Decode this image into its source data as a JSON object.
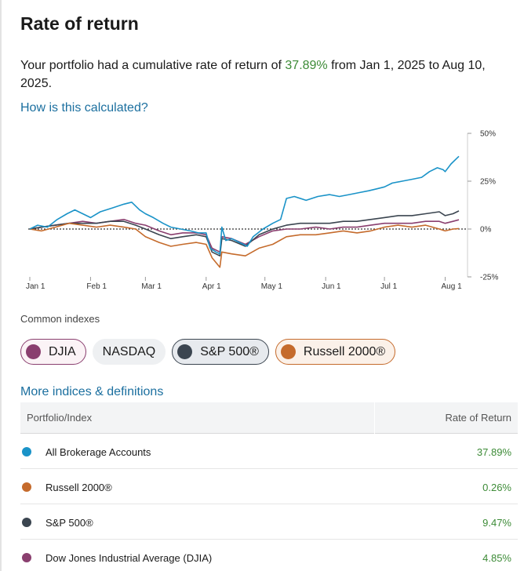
{
  "header": {
    "title": "Rate of return"
  },
  "summary": {
    "prefix": "Your portfolio had a cumulative rate of return of ",
    "return_pct": "37.89%",
    "suffix": " from Jan 1, 2025 to Aug 10, 2025."
  },
  "links": {
    "how_calculated": "How is this calculated?",
    "more_indices": "More indices & definitions"
  },
  "chart_data": {
    "type": "line",
    "x_start": "2025-01-01",
    "x_end": "2025-08-10",
    "x_ticks": [
      {
        "date": "2025-01-01",
        "label": "Jan 1"
      },
      {
        "date": "2025-02-01",
        "label": "Feb 1"
      },
      {
        "date": "2025-03-01",
        "label": "Mar 1"
      },
      {
        "date": "2025-04-01",
        "label": "Apr 1"
      },
      {
        "date": "2025-05-01",
        "label": "May 1"
      },
      {
        "date": "2025-06-01",
        "label": "Jun 1"
      },
      {
        "date": "2025-07-01",
        "label": "Jul 1"
      },
      {
        "date": "2025-08-01",
        "label": "Aug 1"
      }
    ],
    "y_ticks": [
      {
        "value": 50,
        "label": "50%"
      },
      {
        "value": 25,
        "label": "25%"
      },
      {
        "value": 0,
        "label": "0%"
      },
      {
        "value": -25,
        "label": "-25%"
      }
    ],
    "ylim": [
      -25,
      50
    ],
    "y_axis_position": "right",
    "zero_line": "dotted",
    "series": [
      {
        "name": "All Brokerage Accounts",
        "color": "#1a93c8",
        "points": [
          [
            "2025-01-01",
            0
          ],
          [
            "2025-01-05",
            2
          ],
          [
            "2025-01-10",
            1
          ],
          [
            "2025-01-15",
            5
          ],
          [
            "2025-01-20",
            8
          ],
          [
            "2025-01-24",
            10
          ],
          [
            "2025-01-28",
            8
          ],
          [
            "2025-02-01",
            6
          ],
          [
            "2025-02-06",
            9
          ],
          [
            "2025-02-12",
            11
          ],
          [
            "2025-02-18",
            13
          ],
          [
            "2025-02-22",
            14
          ],
          [
            "2025-02-26",
            10
          ],
          [
            "2025-03-01",
            8
          ],
          [
            "2025-03-05",
            6
          ],
          [
            "2025-03-10",
            3
          ],
          [
            "2025-03-14",
            1
          ],
          [
            "2025-03-19",
            0
          ],
          [
            "2025-03-24",
            -1
          ],
          [
            "2025-03-28",
            -2
          ],
          [
            "2025-04-01",
            -2
          ],
          [
            "2025-04-03",
            -10
          ],
          [
            "2025-04-06",
            -12
          ],
          [
            "2025-04-08",
            -13
          ],
          [
            "2025-04-09",
            1
          ],
          [
            "2025-04-11",
            -6
          ],
          [
            "2025-04-14",
            -5
          ],
          [
            "2025-04-18",
            -7
          ],
          [
            "2025-04-22",
            -9
          ],
          [
            "2025-04-25",
            -4
          ],
          [
            "2025-04-30",
            0
          ],
          [
            "2025-05-05",
            3
          ],
          [
            "2025-05-09",
            5
          ],
          [
            "2025-05-12",
            16
          ],
          [
            "2025-05-16",
            17
          ],
          [
            "2025-05-22",
            15
          ],
          [
            "2025-05-28",
            17
          ],
          [
            "2025-06-03",
            18
          ],
          [
            "2025-06-08",
            17
          ],
          [
            "2025-06-13",
            18
          ],
          [
            "2025-06-18",
            19
          ],
          [
            "2025-06-23",
            20
          ],
          [
            "2025-06-27",
            21
          ],
          [
            "2025-07-01",
            22
          ],
          [
            "2025-07-05",
            24
          ],
          [
            "2025-07-10",
            25
          ],
          [
            "2025-07-15",
            26
          ],
          [
            "2025-07-20",
            27
          ],
          [
            "2025-07-24",
            30
          ],
          [
            "2025-07-28",
            32
          ],
          [
            "2025-07-31",
            31
          ],
          [
            "2025-08-01",
            30
          ],
          [
            "2025-08-04",
            34
          ],
          [
            "2025-08-07",
            37
          ],
          [
            "2025-08-08",
            38
          ]
        ]
      },
      {
        "name": "Russell 2000®",
        "color": "#c56b2c",
        "points": [
          [
            "2025-01-01",
            0
          ],
          [
            "2025-01-07",
            -1
          ],
          [
            "2025-01-14",
            1
          ],
          [
            "2025-01-21",
            3
          ],
          [
            "2025-01-28",
            2
          ],
          [
            "2025-02-04",
            1
          ],
          [
            "2025-02-11",
            2
          ],
          [
            "2025-02-18",
            1
          ],
          [
            "2025-02-24",
            0
          ],
          [
            "2025-03-01",
            -4
          ],
          [
            "2025-03-08",
            -7
          ],
          [
            "2025-03-14",
            -9
          ],
          [
            "2025-03-20",
            -8
          ],
          [
            "2025-03-27",
            -7
          ],
          [
            "2025-04-01",
            -8
          ],
          [
            "2025-04-04",
            -15
          ],
          [
            "2025-04-08",
            -20
          ],
          [
            "2025-04-09",
            -12
          ],
          [
            "2025-04-14",
            -13
          ],
          [
            "2025-04-21",
            -14
          ],
          [
            "2025-04-28",
            -10
          ],
          [
            "2025-05-05",
            -8
          ],
          [
            "2025-05-12",
            -4
          ],
          [
            "2025-05-19",
            -3
          ],
          [
            "2025-05-27",
            -3
          ],
          [
            "2025-06-03",
            -2
          ],
          [
            "2025-06-10",
            -1
          ],
          [
            "2025-06-17",
            -2
          ],
          [
            "2025-06-24",
            -1
          ],
          [
            "2025-07-01",
            1
          ],
          [
            "2025-07-08",
            2
          ],
          [
            "2025-07-15",
            1
          ],
          [
            "2025-07-22",
            2
          ],
          [
            "2025-07-29",
            0
          ],
          [
            "2025-08-01",
            -1
          ],
          [
            "2025-08-05",
            0
          ],
          [
            "2025-08-08",
            0.26
          ]
        ]
      },
      {
        "name": "S&P 500®",
        "color": "#3b4550",
        "points": [
          [
            "2025-01-01",
            0
          ],
          [
            "2025-01-07",
            1
          ],
          [
            "2025-01-14",
            2
          ],
          [
            "2025-01-21",
            3
          ],
          [
            "2025-01-28",
            3
          ],
          [
            "2025-02-04",
            3
          ],
          [
            "2025-02-11",
            4
          ],
          [
            "2025-02-18",
            4
          ],
          [
            "2025-02-24",
            2
          ],
          [
            "2025-03-01",
            0
          ],
          [
            "2025-03-08",
            -3
          ],
          [
            "2025-03-14",
            -5
          ],
          [
            "2025-03-20",
            -4
          ],
          [
            "2025-03-27",
            -3
          ],
          [
            "2025-04-01",
            -4
          ],
          [
            "2025-04-04",
            -12
          ],
          [
            "2025-04-08",
            -14
          ],
          [
            "2025-04-09",
            -5
          ],
          [
            "2025-04-14",
            -6
          ],
          [
            "2025-04-21",
            -9
          ],
          [
            "2025-04-28",
            -3
          ],
          [
            "2025-05-05",
            0
          ],
          [
            "2025-05-12",
            2
          ],
          [
            "2025-05-19",
            3
          ],
          [
            "2025-05-27",
            3
          ],
          [
            "2025-06-03",
            3
          ],
          [
            "2025-06-10",
            4
          ],
          [
            "2025-06-17",
            4
          ],
          [
            "2025-06-24",
            5
          ],
          [
            "2025-07-01",
            6
          ],
          [
            "2025-07-08",
            7
          ],
          [
            "2025-07-15",
            7
          ],
          [
            "2025-07-22",
            8
          ],
          [
            "2025-07-29",
            9
          ],
          [
            "2025-08-01",
            7
          ],
          [
            "2025-08-05",
            8
          ],
          [
            "2025-08-08",
            9.47
          ]
        ]
      },
      {
        "name": "Dow Jones Industrial Average (DJIA)",
        "color": "#8a3f6f",
        "points": [
          [
            "2025-01-01",
            0
          ],
          [
            "2025-01-07",
            1
          ],
          [
            "2025-01-14",
            2
          ],
          [
            "2025-01-21",
            3
          ],
          [
            "2025-01-28",
            4
          ],
          [
            "2025-02-04",
            3
          ],
          [
            "2025-02-11",
            4
          ],
          [
            "2025-02-18",
            5
          ],
          [
            "2025-02-24",
            3
          ],
          [
            "2025-03-01",
            2
          ],
          [
            "2025-03-08",
            -1
          ],
          [
            "2025-03-14",
            -3
          ],
          [
            "2025-03-20",
            -2
          ],
          [
            "2025-03-27",
            -2
          ],
          [
            "2025-04-01",
            -3
          ],
          [
            "2025-04-04",
            -10
          ],
          [
            "2025-04-08",
            -12
          ],
          [
            "2025-04-09",
            -4
          ],
          [
            "2025-04-14",
            -5
          ],
          [
            "2025-04-21",
            -8
          ],
          [
            "2025-04-28",
            -4
          ],
          [
            "2025-05-05",
            -1
          ],
          [
            "2025-05-12",
            0
          ],
          [
            "2025-05-19",
            0
          ],
          [
            "2025-05-27",
            1
          ],
          [
            "2025-06-03",
            0
          ],
          [
            "2025-06-10",
            1
          ],
          [
            "2025-06-17",
            1
          ],
          [
            "2025-06-24",
            2
          ],
          [
            "2025-07-01",
            3
          ],
          [
            "2025-07-08",
            3
          ],
          [
            "2025-07-15",
            3
          ],
          [
            "2025-07-22",
            4
          ],
          [
            "2025-07-29",
            4
          ],
          [
            "2025-08-01",
            3
          ],
          [
            "2025-08-05",
            4
          ],
          [
            "2025-08-08",
            4.85
          ]
        ]
      }
    ]
  },
  "indexes": {
    "label": "Common indexes",
    "chips": [
      {
        "label": "DJIA",
        "color": "#8a3f6f",
        "selected": true
      },
      {
        "label": "NASDAQ",
        "selected": false
      },
      {
        "label": "S&P 500®",
        "color": "#3b4550",
        "selected": true
      },
      {
        "label": "Russell 2000®",
        "color": "#c56b2c",
        "selected": true
      }
    ]
  },
  "table": {
    "col_name": "Portfolio/Index",
    "col_return": "Rate of Return",
    "rows": [
      {
        "name": "All Brokerage Accounts",
        "value": "37.89%",
        "color": "#1a93c8"
      },
      {
        "name": "Russell 2000®",
        "value": "0.26%",
        "color": "#c56b2c"
      },
      {
        "name": "S&P 500®",
        "value": "9.47%",
        "color": "#3b4550"
      },
      {
        "name": "Dow Jones Industrial Average (DJIA)",
        "value": "4.85%",
        "color": "#8a3f6f"
      }
    ]
  }
}
